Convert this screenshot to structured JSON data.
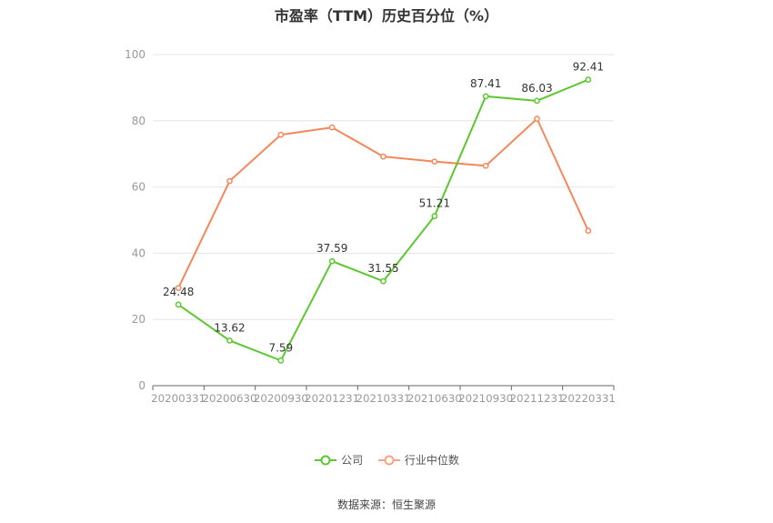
{
  "title": "市盈率（TTM）历史百分位（%）",
  "source": "数据来源：恒生聚源",
  "colors": {
    "company": "#5cc72e",
    "industry": "#f5875a",
    "grid": "#e6e6e6",
    "axis": "#999999"
  },
  "chart_data": {
    "type": "line",
    "title": "市盈率（TTM）历史百分位（%）",
    "categories": [
      "20200331",
      "20200630",
      "20200930",
      "20201231",
      "20210331",
      "20210630",
      "20210930",
      "20211231",
      "20220331"
    ],
    "ylim": [
      0,
      100
    ],
    "yticks": [
      0,
      20,
      40,
      60,
      80,
      100
    ],
    "grid": true,
    "legend_position": "bottom",
    "series": [
      {
        "name": "公司",
        "values": [
          24.48,
          13.62,
          7.59,
          37.59,
          31.55,
          51.21,
          87.41,
          86.03,
          92.41
        ],
        "labels": [
          "24.48",
          "13.62",
          "7.59",
          "37.59",
          "31.55",
          "51.21",
          "87.41",
          "86.03",
          "92.41"
        ]
      },
      {
        "name": "行业中位数",
        "values": [
          29.5,
          61.8,
          75.8,
          78.0,
          69.2,
          67.7,
          66.4,
          80.6,
          46.8
        ]
      }
    ]
  }
}
